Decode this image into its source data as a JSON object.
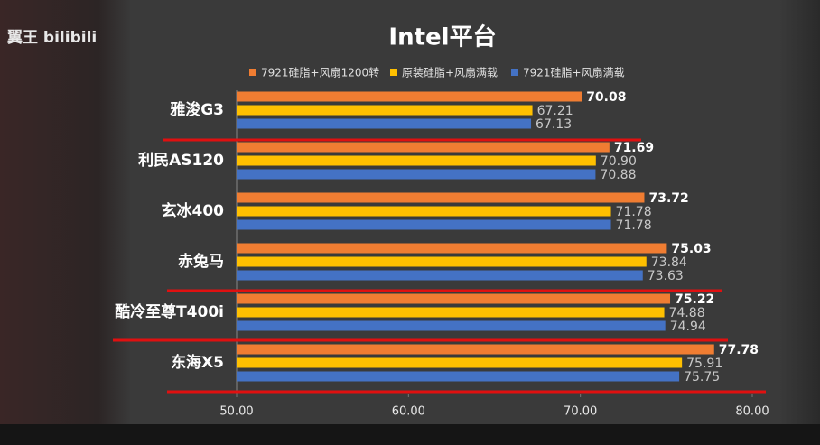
{
  "watermark": "翼王 bilibili",
  "chart_data": {
    "type": "hbar",
    "title": "Intel平台",
    "categories": [
      "雅浚G3",
      "利民AS120",
      "玄冰400",
      "赤兔马",
      "酷冷至尊T400i",
      "东海X5"
    ],
    "series": [
      {
        "name": "7921硅脂+风扇1200转",
        "color": "#f07d32",
        "values": [
          70.08,
          71.69,
          73.72,
          75.03,
          75.22,
          77.78
        ]
      },
      {
        "name": "原装硅脂+风扇满载",
        "color": "#ffc000",
        "values": [
          67.21,
          70.9,
          71.78,
          73.84,
          74.88,
          75.91
        ],
        "value_labels": [
          "67.21",
          "70.90",
          "71.78",
          "73.84",
          "74.88",
          "75.91"
        ]
      },
      {
        "name": "7921硅脂+风扇满载",
        "color": "#4472c4",
        "values": [
          67.13,
          70.88,
          71.78,
          73.63,
          74.94,
          75.75
        ]
      }
    ],
    "xlim": [
      50,
      80
    ],
    "xticks": [
      {
        "value": 50,
        "label": "50.00"
      },
      {
        "value": 60,
        "label": "60.00"
      },
      {
        "value": 70,
        "label": "70.00"
      },
      {
        "value": 80,
        "label": "80.00"
      }
    ],
    "grid": false,
    "legend": "top"
  }
}
